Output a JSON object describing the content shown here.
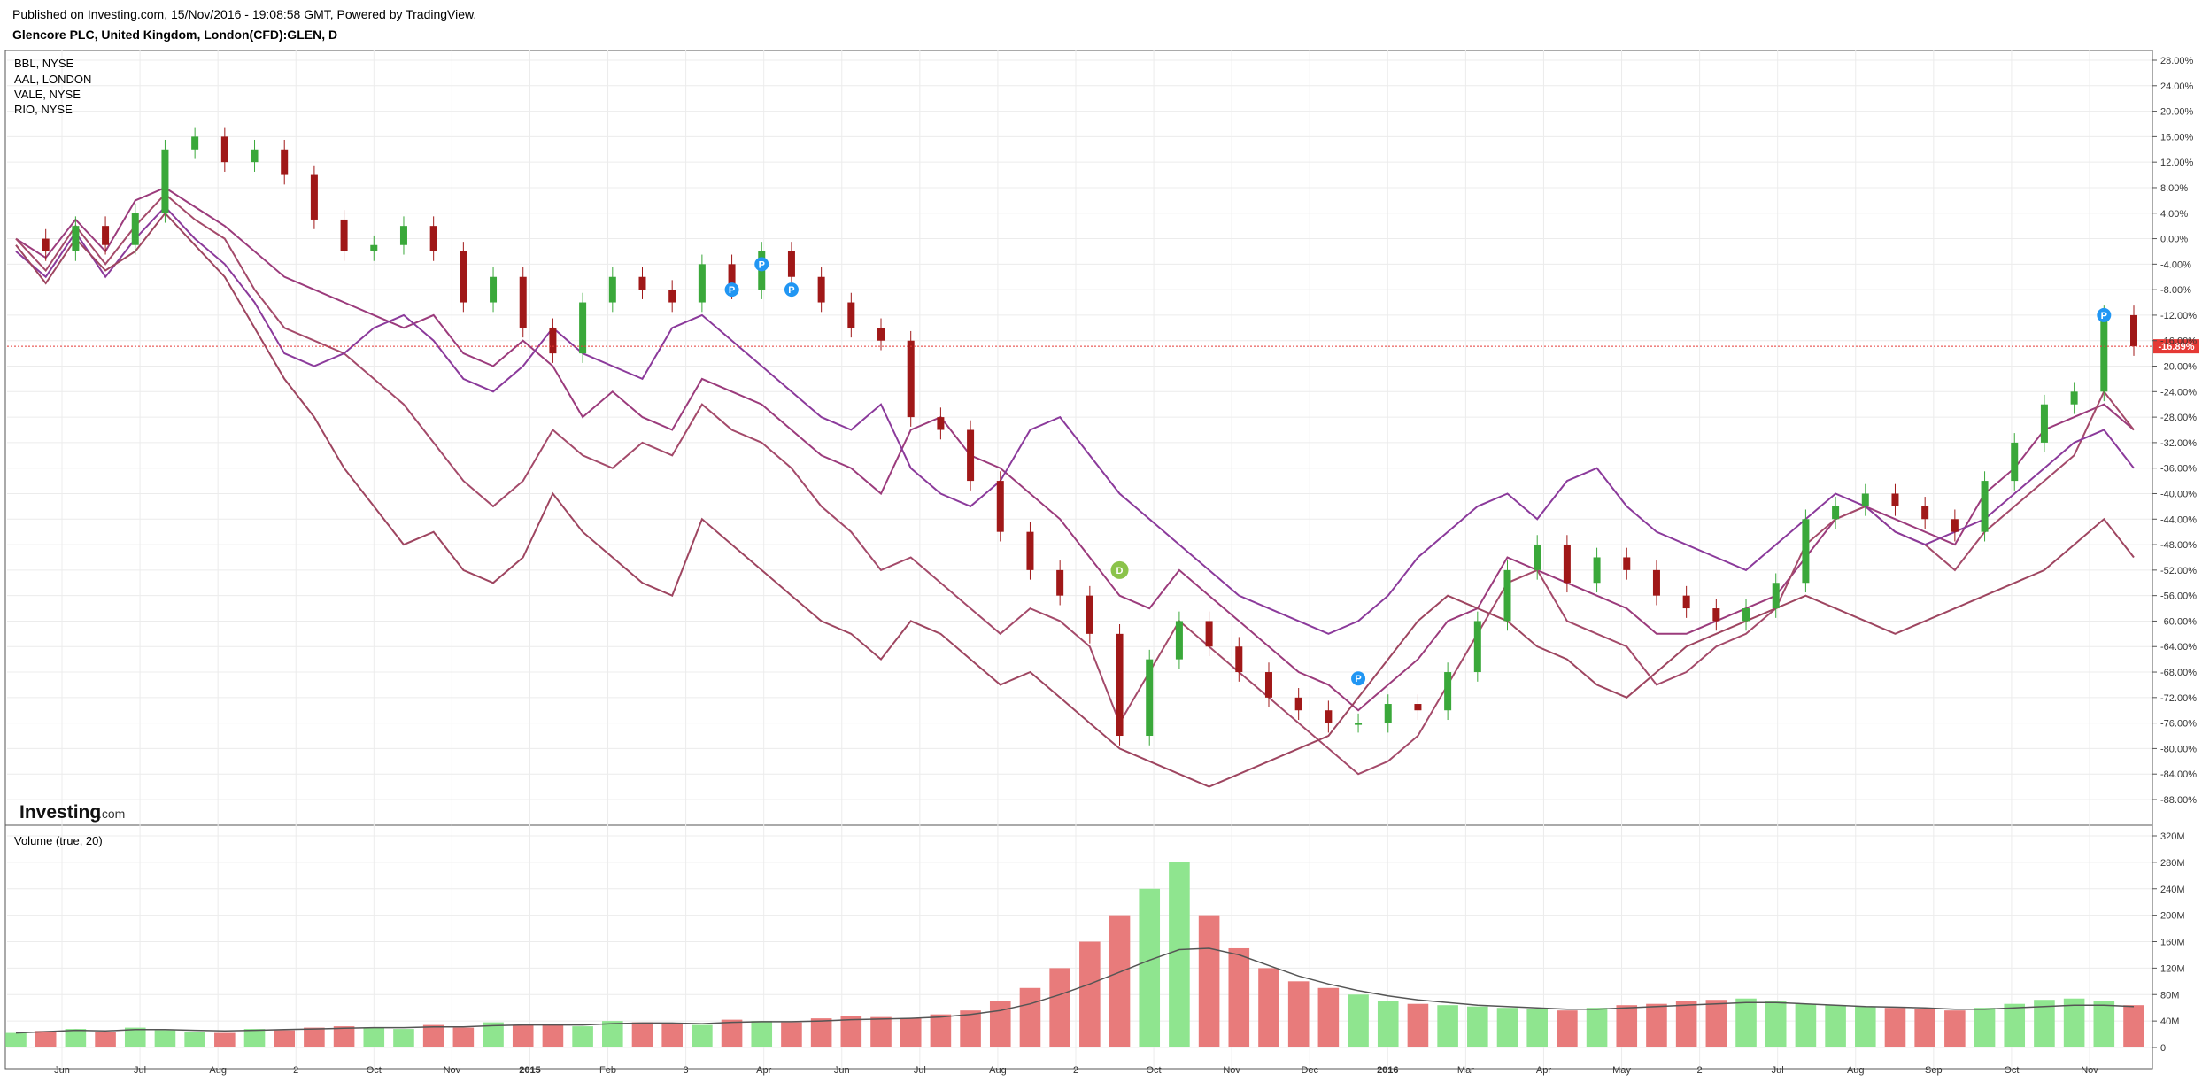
{
  "header": {
    "published": "Published on Investing.com, 15/Nov/2016 - 19:08:58 GMT, Powered by TradingView.",
    "instrument": "Glencore PLC, United Kingdom, London(CFD):GLEN, D"
  },
  "legend": [
    "BBL, NYSE",
    "AAL, LONDON",
    "VALE, NYSE",
    "RIO, NYSE"
  ],
  "logo": {
    "main": "Investing",
    "suffix": ".com"
  },
  "volume_label": "Volume (true, 20)",
  "current_value_label": "-16.89%",
  "markers": [
    "P",
    "P",
    "P",
    "D",
    "P",
    "P"
  ],
  "colors": {
    "up": "#3aa83a",
    "down": "#a01818",
    "vol_up": "#8fe58f",
    "vol_down": "#e87b7b",
    "series": [
      "#9b3b7c",
      "#a44a6a",
      "#8b3a9b",
      "#9e4560"
    ],
    "marker_p": "#2196f3",
    "marker_d": "#8bc34a",
    "price_line": "#e53935"
  },
  "chart_data": [
    {
      "type": "line",
      "name": "price",
      "y_unit": "%",
      "ylim": [
        -90,
        30
      ],
      "y_ticks": [
        "28.00%",
        "24.00%",
        "20.00%",
        "16.00%",
        "12.00%",
        "8.00%",
        "4.00%",
        "0.00%",
        "-4.00%",
        "-8.00%",
        "-12.00%",
        "-16.00%",
        "-20.00%",
        "-24.00%",
        "-28.00%",
        "-32.00%",
        "-36.00%",
        "-40.00%",
        "-44.00%",
        "-48.00%",
        "-52.00%",
        "-56.00%",
        "-60.00%",
        "-64.00%",
        "-68.00%",
        "-72.00%",
        "-76.00%",
        "-80.00%",
        "-84.00%",
        "-88.00%"
      ],
      "x_ticks": [
        "Jun",
        "Jul",
        "Aug",
        "2",
        "Oct",
        "Nov",
        "2015",
        "Feb",
        "3",
        "Apr",
        "Jun",
        "Jul",
        "Aug",
        "2",
        "Oct",
        "Nov",
        "Dec",
        "2016",
        "Mar",
        "Apr",
        "May",
        "2",
        "Jul",
        "Aug",
        "Sep",
        "Oct",
        "Nov"
      ],
      "glen": [
        0,
        -2,
        2,
        -1,
        4,
        14,
        16,
        12,
        14,
        10,
        3,
        -2,
        -1,
        2,
        -2,
        -10,
        -6,
        -14,
        -18,
        -10,
        -6,
        -8,
        -10,
        -4,
        -8,
        -2,
        -6,
        -10,
        -14,
        -16,
        -28,
        -30,
        -38,
        -46,
        -52,
        -56,
        -62,
        -78,
        -66,
        -60,
        -64,
        -68,
        -72,
        -74,
        -76,
        -76,
        -73,
        -74,
        -68,
        -60,
        -52,
        -48,
        -54,
        -50,
        -52,
        -56,
        -58,
        -60,
        -58,
        -54,
        -44,
        -42,
        -40,
        -42,
        -44,
        -46,
        -38,
        -32,
        -26,
        -24,
        -12,
        -16.89
      ],
      "series": [
        {
          "name": "BBL, NYSE",
          "values": [
            0,
            -3,
            3,
            -2,
            6,
            8,
            5,
            2,
            -2,
            -6,
            -8,
            -10,
            -12,
            -14,
            -12,
            -18,
            -20,
            -16,
            -20,
            -28,
            -24,
            -28,
            -30,
            -22,
            -24,
            -26,
            -30,
            -34,
            -36,
            -40,
            -30,
            -28,
            -34,
            -36,
            -40,
            -44,
            -50,
            -56,
            -58,
            -52,
            -56,
            -60,
            -64,
            -68,
            -70,
            -74,
            -70,
            -66,
            -60,
            -58,
            -50,
            -52,
            -54,
            -56,
            -58,
            -62,
            -62,
            -60,
            -58,
            -56,
            -50,
            -44,
            -42,
            -44,
            -46,
            -48,
            -40,
            -36,
            -30,
            -28,
            -26,
            -30
          ]
        },
        {
          "name": "AAL, LONDON",
          "values": [
            0,
            -5,
            2,
            -4,
            2,
            7,
            3,
            0,
            -8,
            -14,
            -16,
            -18,
            -22,
            -26,
            -32,
            -38,
            -42,
            -38,
            -30,
            -34,
            -36,
            -32,
            -34,
            -26,
            -30,
            -32,
            -36,
            -42,
            -46,
            -52,
            -50,
            -54,
            -58,
            -62,
            -58,
            -60,
            -64,
            -76,
            -68,
            -60,
            -64,
            -68,
            -72,
            -76,
            -80,
            -84,
            -82,
            -78,
            -70,
            -62,
            -54,
            -52,
            -60,
            -62,
            -64,
            -70,
            -68,
            -64,
            -62,
            -58,
            -48,
            -44,
            -42,
            -46,
            -48,
            -52,
            -46,
            -42,
            -38,
            -34,
            -24,
            -30
          ]
        },
        {
          "name": "VALE, NYSE",
          "values": [
            -2,
            -6,
            1,
            -6,
            0,
            5,
            0,
            -4,
            -10,
            -18,
            -20,
            -18,
            -14,
            -12,
            -16,
            -22,
            -24,
            -20,
            -14,
            -18,
            -20,
            -22,
            -14,
            -12,
            -16,
            -20,
            -24,
            -28,
            -30,
            -26,
            -36,
            -40,
            -42,
            -38,
            -30,
            -28,
            -34,
            -40,
            -44,
            -48,
            -52,
            -56,
            -58,
            -60,
            -62,
            -60,
            -56,
            -50,
            -46,
            -42,
            -40,
            -44,
            -38,
            -36,
            -42,
            -46,
            -48,
            -50,
            -52,
            -48,
            -44,
            -40,
            -42,
            -46,
            -48,
            -46,
            -44,
            -40,
            -36,
            -32,
            -30,
            -36
          ]
        },
        {
          "name": "RIO, NYSE",
          "values": [
            -1,
            -7,
            0,
            -5,
            -2,
            4,
            -1,
            -6,
            -14,
            -22,
            -28,
            -36,
            -42,
            -48,
            -46,
            -52,
            -54,
            -50,
            -40,
            -46,
            -50,
            -54,
            -56,
            -44,
            -48,
            -52,
            -56,
            -60,
            -62,
            -66,
            -60,
            -62,
            -66,
            -70,
            -68,
            -72,
            -76,
            -80,
            -82,
            -84,
            -86,
            -84,
            -82,
            -80,
            -78,
            -72,
            -66,
            -60,
            -56,
            -58,
            -60,
            -64,
            -66,
            -70,
            -72,
            -68,
            -64,
            -62,
            -60,
            -58,
            -56,
            -58,
            -60,
            -62,
            -60,
            -58,
            -56,
            -54,
            -52,
            -48,
            -44,
            -50
          ]
        }
      ]
    },
    {
      "type": "bar",
      "name": "volume",
      "ylim": [
        0,
        330000000
      ],
      "y_ticks": [
        "320M",
        "280M",
        "240M",
        "200M",
        "160M",
        "120M",
        "80M",
        "40M",
        "0"
      ],
      "values": [
        22,
        25,
        28,
        24,
        30,
        26,
        24,
        22,
        28,
        26,
        30,
        32,
        30,
        28,
        34,
        30,
        38,
        34,
        36,
        32,
        40,
        38,
        36,
        34,
        42,
        40,
        38,
        44,
        48,
        46,
        44,
        50,
        56,
        70,
        90,
        120,
        160,
        200,
        240,
        280,
        200,
        150,
        120,
        100,
        90,
        80,
        70,
        66,
        64,
        62,
        60,
        58,
        56,
        60,
        64,
        66,
        70,
        72,
        74,
        70,
        66,
        64,
        62,
        60,
        58,
        56,
        60,
        66,
        72,
        74,
        70,
        64
      ],
      "ma20": [
        22,
        24,
        26,
        25,
        27,
        27,
        26,
        25,
        26,
        27,
        28,
        29,
        30,
        30,
        31,
        31,
        33,
        34,
        34,
        34,
        36,
        37,
        37,
        36,
        38,
        39,
        39,
        40,
        42,
        43,
        44,
        46,
        50,
        56,
        66,
        80,
        96,
        114,
        132,
        148,
        150,
        140,
        124,
        108,
        96,
        86,
        78,
        72,
        68,
        64,
        62,
        60,
        58,
        58,
        60,
        62,
        64,
        66,
        68,
        68,
        66,
        64,
        62,
        61,
        60,
        58,
        58,
        60,
        62,
        64,
        64,
        62
      ]
    }
  ]
}
